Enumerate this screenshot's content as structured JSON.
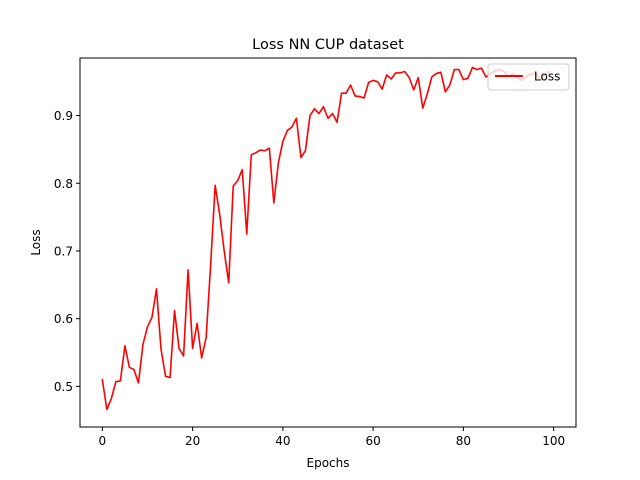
{
  "chart_data": {
    "type": "line",
    "title": "Loss NN CUP dataset",
    "xlabel": "Epochs",
    "ylabel": "Loss",
    "xlim": [
      -4.95,
      104.95
    ],
    "ylim": [
      0.44,
      0.985
    ],
    "xticks": [
      0,
      20,
      40,
      60,
      80,
      100
    ],
    "yticks": [
      0.5,
      0.6,
      0.7,
      0.8,
      0.9
    ],
    "ytick_labels": [
      "0.5",
      "0.6",
      "0.7",
      "0.8",
      "0.9"
    ],
    "grid": false,
    "legend_position": "top-right",
    "series": [
      {
        "name": "Loss",
        "color": "#ff0000",
        "x": [
          0,
          1,
          2,
          3,
          4,
          5,
          6,
          7,
          8,
          9,
          10,
          11,
          12,
          13,
          14,
          15,
          16,
          17,
          18,
          19,
          20,
          21,
          22,
          23,
          24,
          25,
          26,
          27,
          28,
          29,
          30,
          31,
          32,
          33,
          34,
          35,
          36,
          37,
          38,
          39,
          40,
          41,
          42,
          43,
          44,
          45,
          46,
          47,
          48,
          49,
          50,
          51,
          52,
          53,
          54,
          55,
          56,
          57,
          58,
          59,
          60,
          61,
          62,
          63,
          64,
          65,
          66,
          67,
          68,
          69,
          70,
          71,
          72,
          73,
          74,
          75,
          76,
          77,
          78,
          79,
          80,
          81,
          82,
          83,
          84,
          85,
          86,
          87,
          88,
          89,
          90,
          91,
          92,
          93,
          94,
          95,
          96,
          97,
          98,
          99
        ],
        "values": [
          0.51,
          0.466,
          0.482,
          0.507,
          0.508,
          0.56,
          0.528,
          0.525,
          0.505,
          0.562,
          0.588,
          0.602,
          0.644,
          0.555,
          0.515,
          0.513,
          0.612,
          0.556,
          0.545,
          0.672,
          0.556,
          0.593,
          0.542,
          0.572,
          0.68,
          0.797,
          0.754,
          0.7,
          0.653,
          0.796,
          0.804,
          0.82,
          0.725,
          0.842,
          0.845,
          0.849,
          0.848,
          0.852,
          0.771,
          0.83,
          0.862,
          0.878,
          0.883,
          0.896,
          0.838,
          0.848,
          0.9,
          0.91,
          0.903,
          0.913,
          0.896,
          0.903,
          0.89,
          0.933,
          0.933,
          0.945,
          0.929,
          0.928,
          0.926,
          0.949,
          0.952,
          0.95,
          0.939,
          0.96,
          0.954,
          0.963,
          0.963,
          0.965,
          0.956,
          0.938,
          0.956,
          0.911,
          0.932,
          0.957,
          0.962,
          0.964,
          0.935,
          0.945,
          0.968,
          0.968,
          0.953,
          0.955,
          0.971,
          0.968,
          0.97,
          0.957,
          0.962,
          0.966,
          0.968,
          0.965,
          0.958,
          0.962,
          0.956,
          0.952,
          0.958,
          0.961,
          0.963,
          0.953,
          0.96,
          0.965
        ]
      }
    ]
  }
}
